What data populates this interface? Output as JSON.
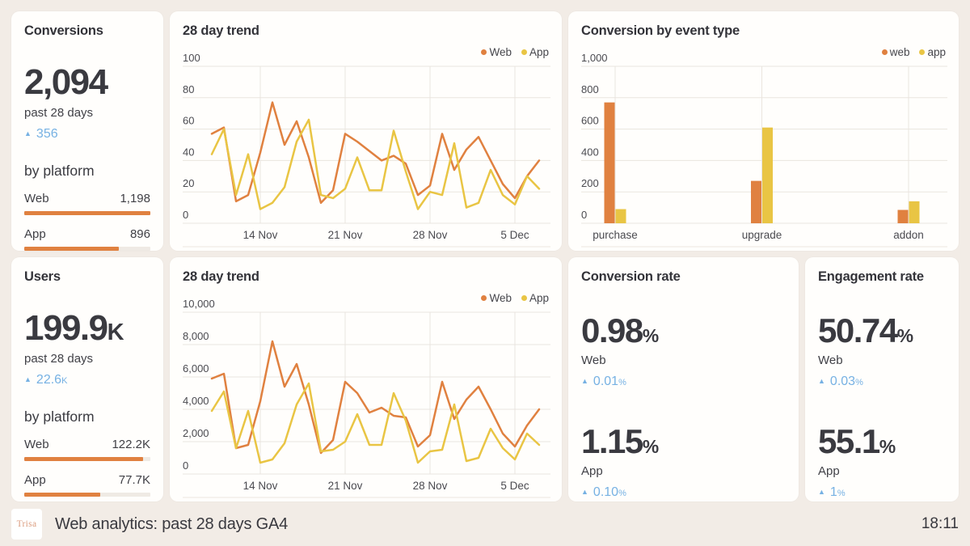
{
  "page": {
    "background": "#f2ece6"
  },
  "colors": {
    "web": "#e08140",
    "app": "#e9c544",
    "delta_blue": "#76b1e3",
    "bar_track": "#efeae4",
    "gridline": "#eae5df"
  },
  "icons": {
    "arrow_up": "▲"
  },
  "kpi_cards": {
    "conversions": {
      "title": "Conversions",
      "value": "2,094",
      "value_suffix": "",
      "period": "past 28 days",
      "delta_value": "356",
      "delta_suffix": "",
      "platform_heading": "by platform",
      "platforms": [
        {
          "label": "Web",
          "value": "1,198",
          "bar_pct": 100
        },
        {
          "label": "App",
          "value": "896",
          "bar_pct": 75
        }
      ]
    },
    "users": {
      "title": "Users",
      "value": "199.9",
      "value_suffix": "K",
      "period": "past 28 days",
      "delta_value": "22.6",
      "delta_suffix": "K",
      "platform_heading": "by platform",
      "platforms": [
        {
          "label": "Web",
          "value": "122.2K",
          "bar_pct": 94
        },
        {
          "label": "App",
          "value": "77.7K",
          "bar_pct": 60
        }
      ]
    }
  },
  "rate_cards": {
    "conversion_rate": {
      "title": "Conversion rate",
      "metrics": [
        {
          "value": "0.98",
          "unit": "%",
          "label": "Web",
          "delta": "0.01",
          "delta_unit": "%"
        },
        {
          "value": "1.15",
          "unit": "%",
          "label": "App",
          "delta": "0.10",
          "delta_unit": "%"
        }
      ]
    },
    "engagement_rate": {
      "title": "Engagement rate",
      "metrics": [
        {
          "value": "50.74",
          "unit": "%",
          "label": "Web",
          "delta": "0.03",
          "delta_unit": "%"
        },
        {
          "value": "55.1",
          "unit": "%",
          "label": "App",
          "delta": "1",
          "delta_unit": "%"
        }
      ]
    }
  },
  "footer": {
    "logo_text": "Trisa",
    "title": "Web analytics: past 28 days GA4",
    "time": "18:11"
  },
  "chart_data": [
    {
      "id": "conversions-28-day-trend",
      "type": "line",
      "title": "28 day trend",
      "ylim": [
        0,
        100
      ],
      "y_ticks": [
        0,
        20,
        40,
        60,
        80,
        100
      ],
      "x_tick_labels": [
        "14 Nov",
        "21 Nov",
        "28 Nov",
        "5 Dec"
      ],
      "x_tick_indices": [
        4,
        11,
        18,
        25
      ],
      "grid": true,
      "legend_position": "top-right",
      "series": [
        {
          "name": "Web",
          "color": "#e08140",
          "values": [
            57,
            61,
            14,
            18,
            45,
            77,
            50,
            65,
            42,
            13,
            21,
            57,
            52,
            46,
            40,
            43,
            38,
            18,
            24,
            57,
            34,
            47,
            55,
            40,
            25,
            16,
            30,
            40
          ]
        },
        {
          "name": "App",
          "color": "#e9c544",
          "values": [
            44,
            60,
            18,
            44,
            9,
            13,
            23,
            52,
            66,
            18,
            16,
            22,
            42,
            21,
            21,
            59,
            33,
            9,
            20,
            18,
            51,
            10,
            13,
            34,
            18,
            12,
            30,
            22
          ]
        }
      ]
    },
    {
      "id": "conversion-by-event-type",
      "type": "bar",
      "title": "Conversion by event type",
      "ylim": [
        0,
        1000
      ],
      "y_ticks": [
        0,
        200,
        400,
        600,
        800,
        1000
      ],
      "categories": [
        "purchase",
        "upgrade",
        "addon"
      ],
      "grid": true,
      "legend_position": "top-right",
      "series": [
        {
          "name": "web",
          "color": "#e08140",
          "values": [
            770,
            270,
            85
          ]
        },
        {
          "name": "app",
          "color": "#e9c544",
          "values": [
            90,
            610,
            140
          ]
        }
      ]
    },
    {
      "id": "users-28-day-trend",
      "type": "line",
      "title": "28 day trend",
      "ylim": [
        0,
        10000
      ],
      "y_ticks": [
        0,
        2000,
        4000,
        6000,
        8000,
        10000
      ],
      "x_tick_labels": [
        "14 Nov",
        "21 Nov",
        "28 Nov",
        "5 Dec"
      ],
      "x_tick_indices": [
        4,
        11,
        18,
        25
      ],
      "grid": true,
      "legend_position": "top-right",
      "series": [
        {
          "name": "Web",
          "color": "#e08140",
          "values": [
            5900,
            6200,
            1600,
            1800,
            4500,
            8200,
            5400,
            6800,
            4300,
            1300,
            2100,
            5700,
            5000,
            3800,
            4100,
            3600,
            3500,
            1700,
            2400,
            5700,
            3400,
            4600,
            5400,
            4000,
            2500,
            1700,
            3000,
            4000
          ]
        },
        {
          "name": "App",
          "color": "#e9c544",
          "values": [
            3900,
            5100,
            1600,
            3900,
            700,
            900,
            1900,
            4300,
            5600,
            1400,
            1500,
            2000,
            3700,
            1800,
            1800,
            5000,
            3300,
            700,
            1400,
            1500,
            4300,
            800,
            1000,
            2800,
            1600,
            900,
            2500,
            1800
          ]
        }
      ]
    }
  ]
}
